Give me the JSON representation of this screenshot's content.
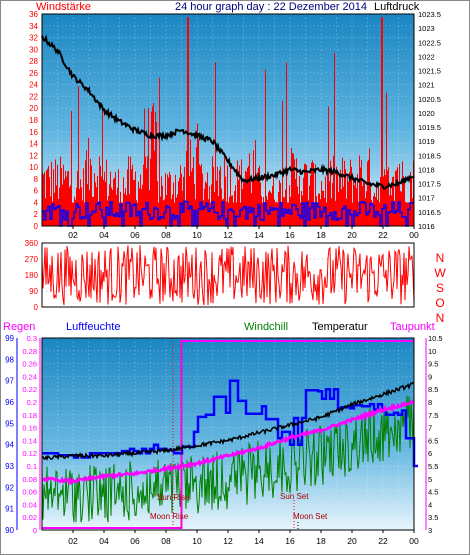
{
  "header": {
    "left_title": "Windstärke",
    "center_title": "24 hour graph day : 22 Dezember 2014",
    "right_title": "Luftdruck"
  },
  "wind_panel": {
    "y_left_ticks": [
      "0",
      "2",
      "4",
      "6",
      "8",
      "10",
      "12",
      "14",
      "16",
      "18",
      "20",
      "22",
      "24",
      "26",
      "28",
      "30",
      "32",
      "34",
      "36"
    ],
    "y_right_ticks": [
      "1016",
      "1016.5",
      "1017",
      "1017.5",
      "1018",
      "1018.5",
      "1019",
      "1019.5",
      "1020",
      "1020.5",
      "1021",
      "1021.5",
      "1022",
      "1022.5",
      "1023",
      "1023.5"
    ],
    "x_ticks": [
      "02",
      "04",
      "06",
      "08",
      "10",
      "12",
      "14",
      "16",
      "18",
      "20",
      "22",
      "00"
    ]
  },
  "direction_panel": {
    "y_ticks": [
      "0",
      "90",
      "180",
      "270",
      "360"
    ],
    "compass": [
      "N",
      "W",
      "S",
      "O",
      "N"
    ]
  },
  "bottom_panel": {
    "labels": {
      "regen": "Regen",
      "luftfeuchte": "Luftfeuchte",
      "windchill": "Windchill",
      "temperatur": "Temperatur",
      "taupunkt": "Taupunkt"
    },
    "y_humidity_ticks": [
      "90",
      "91",
      "92",
      "93",
      "94",
      "95",
      "96",
      "97",
      "98",
      "99"
    ],
    "y_rain_ticks": [
      "0",
      "0.02",
      "0.04",
      "0.06",
      "0.08",
      "0.1",
      "0.12",
      "0.14",
      "0.16",
      "0.18",
      "0.2",
      "0.22",
      "0.24",
      "0.26",
      "0.28",
      "0.3"
    ],
    "y_temp_ticks": [
      "3",
      "3.5",
      "4",
      "4.5",
      "5",
      "5.5",
      "6",
      "6.5",
      "7",
      "7.5",
      "8",
      "8.5",
      "9",
      "9.5",
      "10",
      "10.5"
    ],
    "x_ticks": [
      "02",
      "04",
      "06",
      "08",
      "10",
      "12",
      "14",
      "16",
      "18",
      "20",
      "22",
      "00"
    ],
    "annotations": {
      "moon_rise": "Moon Rise",
      "sun_rise": "Sun Rise",
      "sun_set": "Sun Set",
      "moon_set": "Moon Set"
    }
  },
  "colors": {
    "wind_speed": "#ff0000",
    "wind_gust": "#0000ff",
    "pressure": "#000000",
    "direction": "#ff0000",
    "humidity": "#0000ff",
    "windchill": "#008000",
    "temperature": "#000000",
    "dewpoint": "#ff00ff",
    "rain": "#ff00ff"
  },
  "chart_data": [
    {
      "type": "line",
      "y_left_range": [
        0,
        36
      ],
      "y_right_range": [
        1016,
        1023.5
      ],
      "x_range_hours": [
        0,
        24
      ],
      "series": [
        {
          "name": "Windstärke",
          "axis": "left",
          "style": "bars",
          "approx_values": [
            8,
            8,
            7,
            10,
            8,
            7,
            8,
            14,
            7,
            8,
            10,
            8,
            9,
            8,
            10,
            7,
            6,
            9,
            8,
            7,
            8,
            8,
            9,
            7,
            10,
            8
          ]
        },
        {
          "name": "Luftdruck",
          "axis": "right",
          "approx_points": [
            [
              0,
              1022.7
            ],
            [
              1,
              1022.2
            ],
            [
              2,
              1021.3
            ],
            [
              3,
              1020.8
            ],
            [
              4,
              1020.1
            ],
            [
              5,
              1019.7
            ],
            [
              6,
              1019.4
            ],
            [
              7,
              1019.2
            ],
            [
              8,
              1019.2
            ],
            [
              9,
              1019.4
            ],
            [
              10,
              1019.2
            ],
            [
              11,
              1019.0
            ],
            [
              12,
              1018.3
            ],
            [
              13,
              1017.6
            ],
            [
              14,
              1017.7
            ],
            [
              15,
              1017.8
            ],
            [
              16,
              1018.0
            ],
            [
              17,
              1017.9
            ],
            [
              18,
              1018.0
            ],
            [
              19,
              1017.9
            ],
            [
              20,
              1017.7
            ],
            [
              21,
              1017.5
            ],
            [
              22,
              1017.4
            ],
            [
              23,
              1017.5
            ],
            [
              24,
              1017.8
            ]
          ]
        },
        {
          "name": "Windrichtung",
          "axis": "direction",
          "style": "noise",
          "range": [
            0,
            360
          ]
        }
      ]
    },
    {
      "type": "line",
      "y_humidity_range": [
        90,
        99
      ],
      "y_rain_range": [
        0,
        0.3
      ],
      "y_temp_range": [
        3,
        10.5
      ],
      "x_range_hours": [
        0,
        24
      ],
      "series": [
        {
          "name": "Luftfeuchte",
          "axis": "humidity",
          "approx_points": [
            [
              0,
              93.6
            ],
            [
              1,
              93.6
            ],
            [
              2,
              93.4
            ],
            [
              3,
              93.6
            ],
            [
              4,
              93.6
            ],
            [
              5,
              93.8
            ],
            [
              6,
              93.6
            ],
            [
              7,
              94.0
            ],
            [
              8,
              93.6
            ],
            [
              9,
              93.9
            ],
            [
              10,
              95.3
            ],
            [
              11,
              95.5
            ],
            [
              12,
              97.0
            ],
            [
              13,
              95.1
            ],
            [
              14,
              95.8
            ],
            [
              15,
              94.6
            ],
            [
              16,
              94.0
            ],
            [
              17,
              96.5
            ],
            [
              18,
              96.6
            ],
            [
              19,
              95.7
            ],
            [
              20,
              95.8
            ],
            [
              21,
              95.9
            ],
            [
              22,
              95.4
            ],
            [
              23,
              95.6
            ],
            [
              24,
              93.0
            ]
          ]
        },
        {
          "name": "Temperatur",
          "axis": "temp",
          "approx_points": [
            [
              0,
              5.8
            ],
            [
              2,
              5.9
            ],
            [
              4,
              5.9
            ],
            [
              6,
              6.0
            ],
            [
              8,
              6.1
            ],
            [
              10,
              6.3
            ],
            [
              12,
              6.5
            ],
            [
              14,
              6.8
            ],
            [
              16,
              7.1
            ],
            [
              18,
              7.4
            ],
            [
              20,
              7.9
            ],
            [
              22,
              8.3
            ],
            [
              24,
              8.7
            ]
          ]
        },
        {
          "name": "Taupunkt",
          "axis": "temp",
          "approx_points": [
            [
              0,
              5.0
            ],
            [
              2,
              4.9
            ],
            [
              4,
              5.1
            ],
            [
              6,
              5.2
            ],
            [
              8,
              5.4
            ],
            [
              10,
              5.6
            ],
            [
              12,
              5.9
            ],
            [
              14,
              6.2
            ],
            [
              16,
              6.6
            ],
            [
              18,
              6.9
            ],
            [
              20,
              7.3
            ],
            [
              22,
              7.7
            ],
            [
              24,
              8.0
            ]
          ]
        },
        {
          "name": "Windchill",
          "axis": "temp",
          "style": "noise",
          "approx_band": [
            3.5,
            7.5
          ]
        },
        {
          "name": "Regen",
          "axis": "rain",
          "approx_points": [
            [
              0,
              0
            ],
            [
              9,
              0
            ],
            [
              9,
              0.3
            ],
            [
              24,
              0.3
            ]
          ]
        }
      ]
    }
  ]
}
